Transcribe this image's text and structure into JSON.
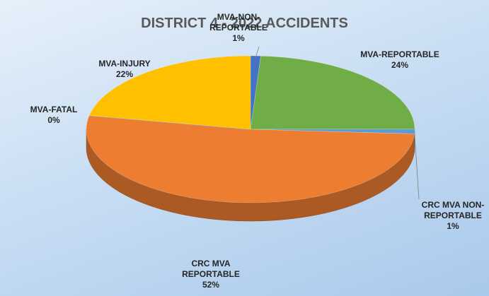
{
  "chart_data": {
    "type": "pie",
    "title": "DISTRICT 4 - 2022 ACCIDENTS",
    "categories": [
      "MVA-NON-REPORTABLE",
      "MVA-REPORTABLE",
      "CRC MVA NON-REPORTABLE",
      "CRC MVA REPORTABLE",
      "MVA-FATAL",
      "MVA-INJURY"
    ],
    "values": [
      1,
      24,
      1,
      52,
      0,
      22
    ],
    "value_labels": [
      "1%",
      "24%",
      "1%",
      "52%",
      "0%",
      "22%"
    ],
    "colors": [
      "#4472c4",
      "#70ad47",
      "#5b9bd5",
      "#ed7d31",
      "#a5a5a5",
      "#ffc000"
    ]
  }
}
